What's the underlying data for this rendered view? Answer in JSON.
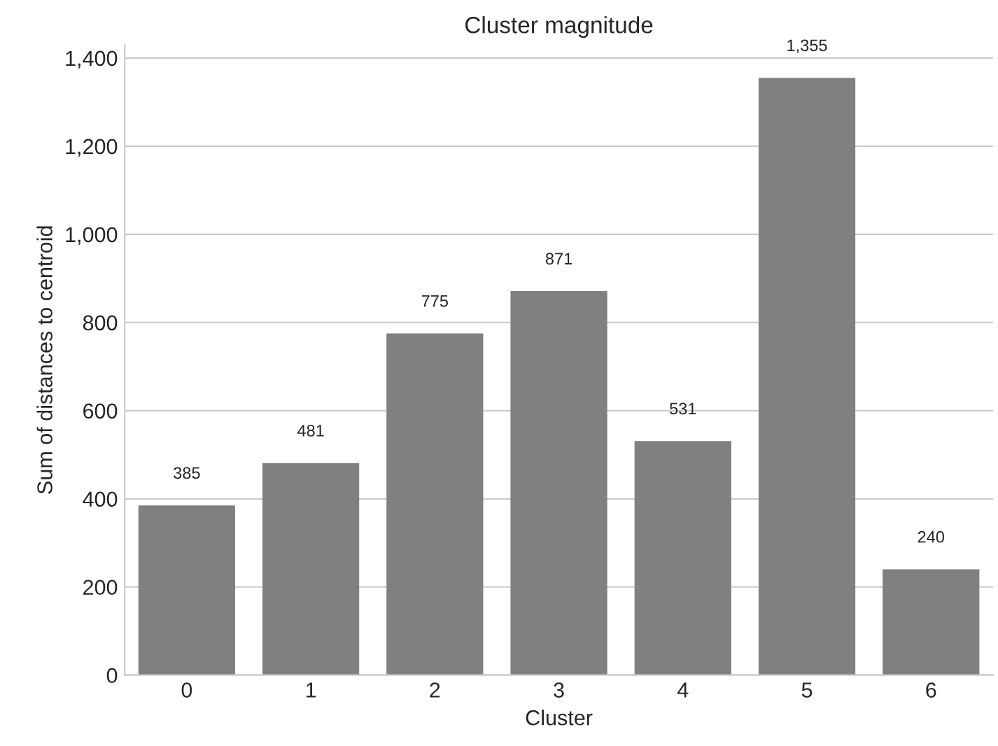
{
  "chart_data": {
    "type": "bar",
    "title": "Cluster magnitude",
    "xlabel": "Cluster",
    "ylabel": "Sum of distances to centroid",
    "categories": [
      "0",
      "1",
      "2",
      "3",
      "4",
      "5",
      "6"
    ],
    "values": [
      385,
      481,
      775,
      871,
      531,
      1355,
      240
    ],
    "value_labels": [
      "385",
      "481",
      "775",
      "871",
      "531",
      "1,355",
      "240"
    ],
    "color": "#808080",
    "ylim": [
      0,
      1430
    ],
    "yticks": [
      0,
      200,
      400,
      600,
      800,
      {
        "value": 1000,
        "label": "1,000"
      },
      {
        "value": 1200,
        "label": "1,200"
      },
      {
        "value": 1400,
        "label": "1,400"
      }
    ],
    "grid": "y",
    "legend": false
  }
}
